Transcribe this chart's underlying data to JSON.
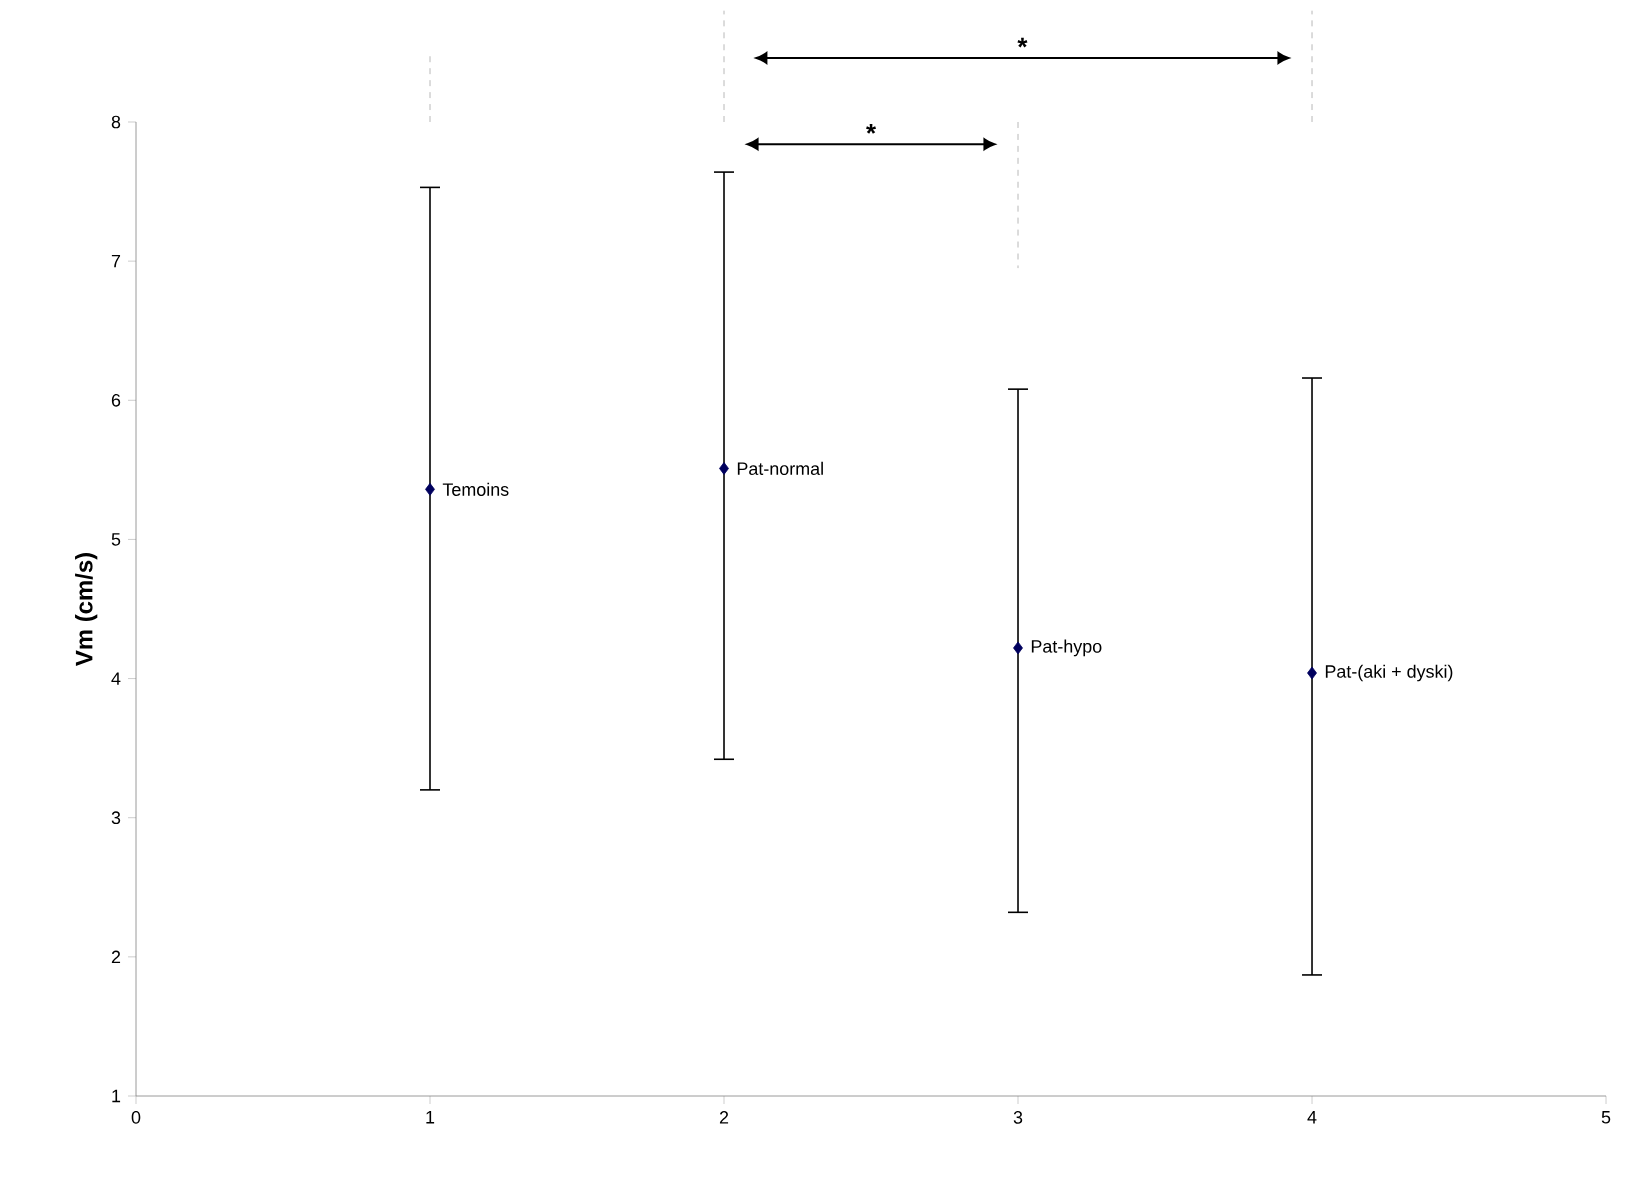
{
  "chart_data": {
    "type": "scatter",
    "ylabel": "Vm (cm/s)",
    "x": [
      1,
      2,
      3,
      4
    ],
    "values": [
      5.36,
      5.51,
      4.22,
      4.04
    ],
    "errors": [
      [
        3.2,
        7.53
      ],
      [
        3.42,
        7.64
      ],
      [
        2.32,
        6.08
      ],
      [
        1.87,
        6.16
      ]
    ],
    "color": "#00005e",
    "marker": "diamond",
    "xlim": [
      0,
      5
    ],
    "xticks": [
      0,
      1,
      2,
      3,
      4,
      5
    ],
    "ylim": [
      1,
      8
    ],
    "yticks": [
      1,
      2,
      3,
      4,
      5,
      6,
      7,
      8
    ],
    "grid": false,
    "annotations": [
      {
        "text": "Temoins",
        "x": 1,
        "y": 5.36
      },
      {
        "text": "Pat-normal",
        "x": 2,
        "y": 5.51
      },
      {
        "text": "Pat-hypo",
        "x": 3,
        "y": 4.22
      },
      {
        "text": "Pat-(aki + dyski)",
        "x": 4,
        "y": 4.04
      },
      "*",
      "*"
    ]
  }
}
